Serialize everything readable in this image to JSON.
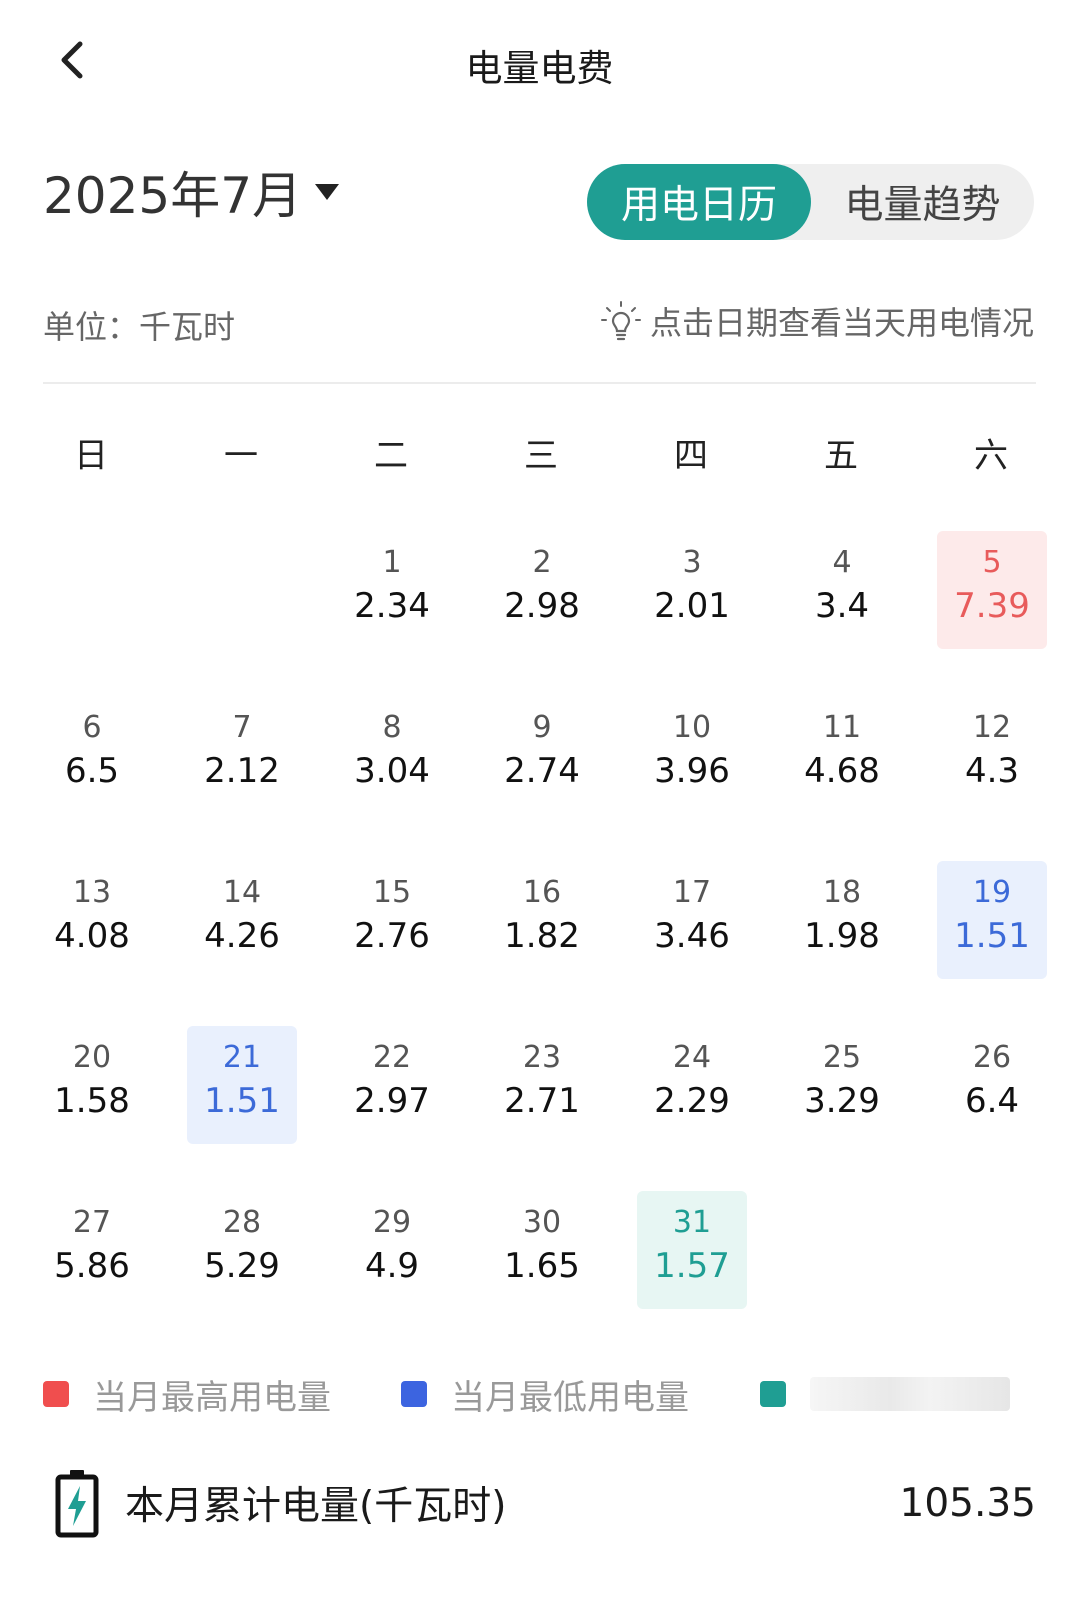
{
  "header": {
    "title": "电量电费"
  },
  "month_picker": {
    "label": "2025年7月"
  },
  "tabs": [
    {
      "label": "用电日历",
      "active": true
    },
    {
      "label": "电量趋势",
      "active": false
    }
  ],
  "unit": {
    "text": "单位：千瓦时"
  },
  "hint": {
    "text": "点击日期查看当天用电情况"
  },
  "weekdays": [
    "日",
    "一",
    "二",
    "三",
    "四",
    "五",
    "六"
  ],
  "calendar": {
    "weeks": [
      [
        null,
        null,
        {
          "day": "1",
          "value": "2.34"
        },
        {
          "day": "2",
          "value": "2.98"
        },
        {
          "day": "3",
          "value": "2.01"
        },
        {
          "day": "4",
          "value": "3.4"
        },
        {
          "day": "5",
          "value": "7.39",
          "state": "max"
        }
      ],
      [
        {
          "day": "6",
          "value": "6.5"
        },
        {
          "day": "7",
          "value": "2.12"
        },
        {
          "day": "8",
          "value": "3.04"
        },
        {
          "day": "9",
          "value": "2.74"
        },
        {
          "day": "10",
          "value": "3.96"
        },
        {
          "day": "11",
          "value": "4.68"
        },
        {
          "day": "12",
          "value": "4.3"
        }
      ],
      [
        {
          "day": "13",
          "value": "4.08"
        },
        {
          "day": "14",
          "value": "4.26"
        },
        {
          "day": "15",
          "value": "2.76"
        },
        {
          "day": "16",
          "value": "1.82"
        },
        {
          "day": "17",
          "value": "3.46"
        },
        {
          "day": "18",
          "value": "1.98"
        },
        {
          "day": "19",
          "value": "1.51",
          "state": "min"
        }
      ],
      [
        {
          "day": "20",
          "value": "1.58"
        },
        {
          "day": "21",
          "value": "1.51",
          "state": "min"
        },
        {
          "day": "22",
          "value": "2.97"
        },
        {
          "day": "23",
          "value": "2.71"
        },
        {
          "day": "24",
          "value": "2.29"
        },
        {
          "day": "25",
          "value": "3.29"
        },
        {
          "day": "26",
          "value": "6.4"
        }
      ],
      [
        {
          "day": "27",
          "value": "5.86"
        },
        {
          "day": "28",
          "value": "5.29"
        },
        {
          "day": "29",
          "value": "4.9"
        },
        {
          "day": "30",
          "value": "1.65"
        },
        {
          "day": "31",
          "value": "1.57",
          "state": "today"
        },
        null,
        null
      ]
    ]
  },
  "legend": [
    {
      "label": "当月最高用电量",
      "color": "#f04e4e"
    },
    {
      "label": "当月最低用电量",
      "color": "#3c64e0"
    },
    {
      "label": "",
      "color": "#1f9e93",
      "obscured": true
    }
  ],
  "summary": {
    "label": "本月累计电量(千瓦时)",
    "value": "105.35"
  },
  "colors": {
    "accent": "#1f9e93",
    "max": "#e85b5b",
    "min": "#3c6ad8",
    "today": "#1f9e93"
  },
  "icons": {
    "back": "chevron-left-icon",
    "dropdown": "caret-down-icon",
    "hint": "lightbulb-icon",
    "summary": "battery-charge-icon"
  }
}
